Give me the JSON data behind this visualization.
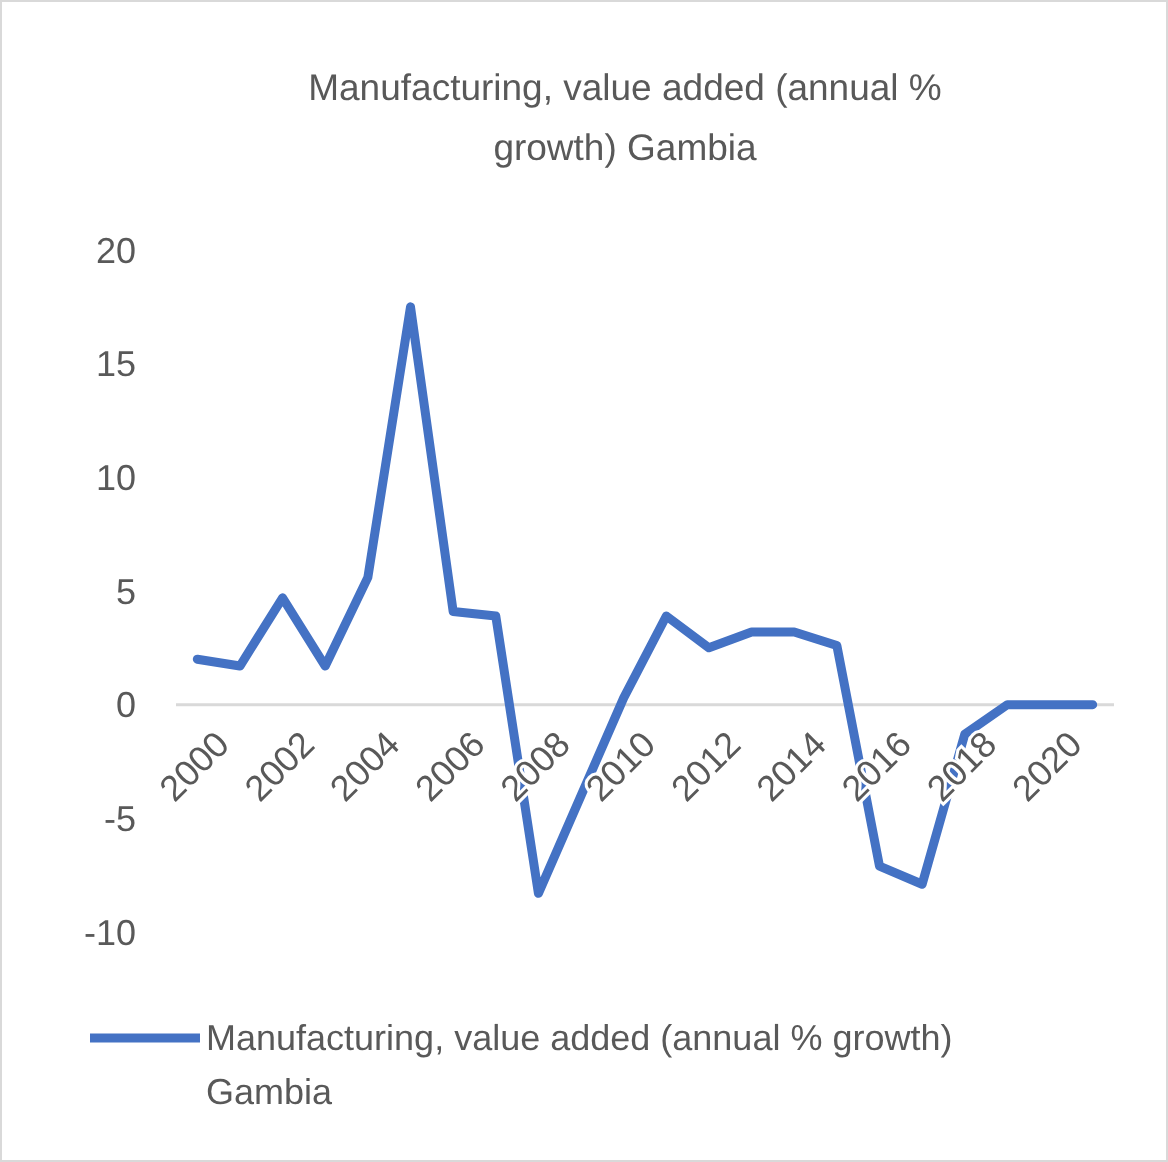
{
  "chart_data": {
    "type": "line",
    "title": "Manufacturing, value added (annual % growth) Gambia",
    "categories": [
      "2000",
      null,
      "2002",
      null,
      "2004",
      null,
      "2006",
      null,
      "2008",
      null,
      "2010",
      null,
      "2012",
      null,
      "2014",
      null,
      "2016",
      null,
      "2018",
      null,
      "2020",
      null
    ],
    "series": [
      {
        "name": "Manufacturing, value added (annual % growth) Gambia",
        "color": "#4472c4",
        "values": [
          2.0,
          1.7,
          4.7,
          1.7,
          5.6,
          17.5,
          4.1,
          3.9,
          -8.3,
          -4.0,
          0.3,
          3.9,
          2.5,
          3.2,
          3.2,
          2.6,
          -7.1,
          -7.9,
          -1.3,
          0,
          0,
          0
        ]
      }
    ],
    "ylim": [
      -10,
      20
    ],
    "yticks": [
      -10,
      -5,
      0,
      5,
      10,
      15,
      20
    ],
    "grid": false,
    "legend": "bottom",
    "marker": "none",
    "line_style": "solid"
  }
}
